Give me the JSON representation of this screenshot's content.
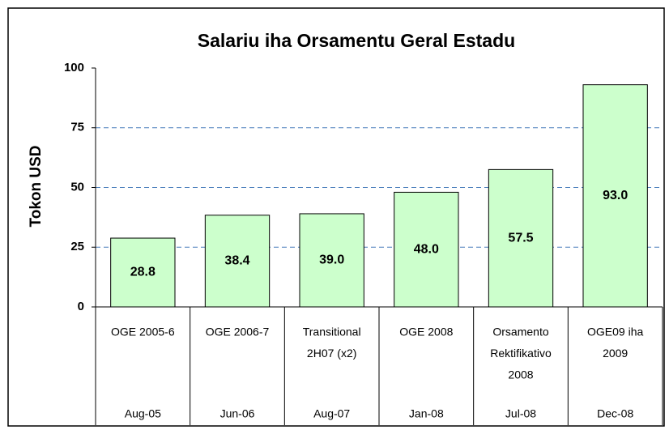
{
  "chart_data": {
    "type": "bar",
    "title": "Salariu iha Orsamentu Geral Estadu",
    "y_label": "Tokon USD",
    "categories": [
      [
        "OGE 2005-6"
      ],
      [
        "OGE 2006-7"
      ],
      [
        "Transitional",
        "2H07 (x2)"
      ],
      [
        "OGE 2008"
      ],
      [
        "Orsamento",
        "Rektifikativo",
        "2008"
      ],
      [
        "OGE09 iha",
        "2009"
      ]
    ],
    "dates": [
      "Aug-05",
      "Jun-06",
      "Aug-07",
      "Jan-08",
      "Jul-08",
      "Dec-08"
    ],
    "values": [
      28.8,
      38.4,
      39,
      48,
      57.5,
      93
    ],
    "value_labels": [
      "28.8",
      "38.4",
      "39.0",
      "48.0",
      "57.5",
      "93.0"
    ],
    "color": "#ccffcc",
    "grid_color": "#4a7ebb",
    "ylim": [
      0,
      100
    ],
    "yticks": [
      0,
      25,
      50,
      75,
      100
    ],
    "grid": true
  }
}
